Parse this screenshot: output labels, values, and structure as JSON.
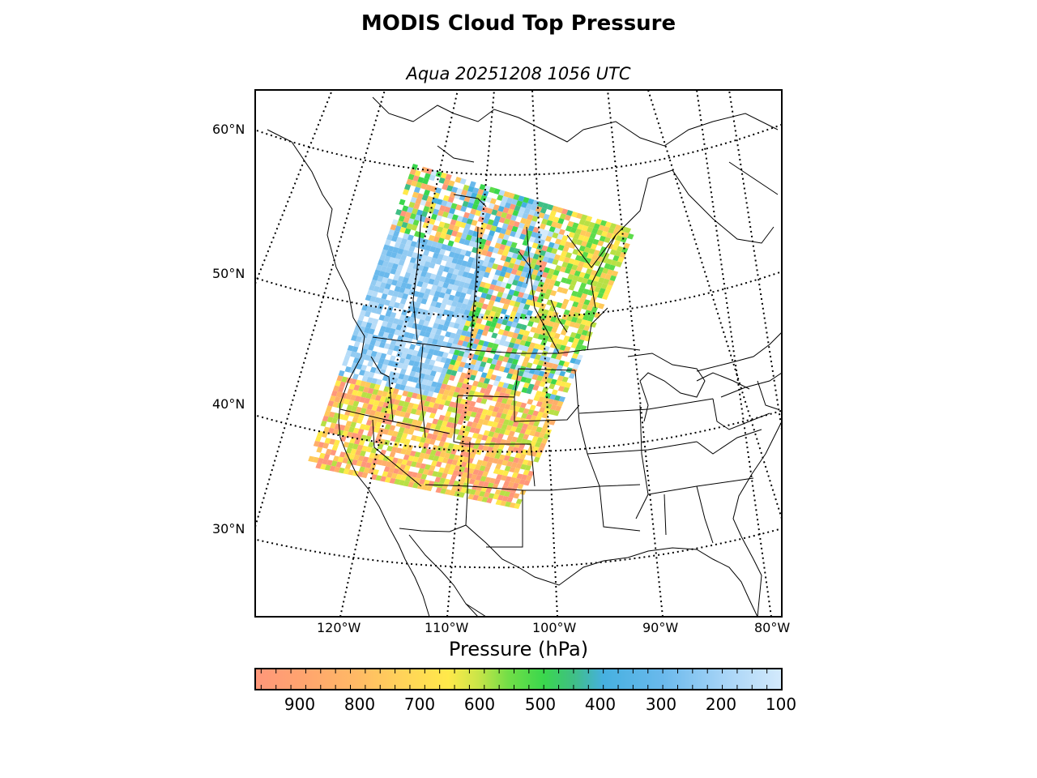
{
  "title": "MODIS Cloud Top Pressure",
  "subtitle": "Aqua 20251208 1056 UTC",
  "map": {
    "projection": "conic",
    "lat_labels": [
      "60°N",
      "50°N",
      "40°N",
      "30°N"
    ],
    "lon_labels": [
      "120°W",
      "110°W",
      "100°W",
      "90°W",
      "80°W"
    ],
    "graticule_style": "dotted",
    "swath_colors": [
      "#ff977a",
      "#ffae6a",
      "#ffc95a",
      "#ffe94a",
      "#b8e045",
      "#5cdc4a",
      "#3ad74d",
      "#3fbf85",
      "#46b0e0",
      "#6ab9ec",
      "#92cbf2",
      "#b6dcf8",
      "#d4eafc"
    ]
  },
  "colorbar": {
    "label": "Pressure (hPa)",
    "ticks": [
      "900",
      "800",
      "700",
      "600",
      "500",
      "400",
      "300",
      "200",
      "100"
    ],
    "range": [
      985,
      100
    ],
    "stops": [
      {
        "value": 985,
        "color": "#ff977a"
      },
      {
        "value": 900,
        "color": "#ffa56e"
      },
      {
        "value": 820,
        "color": "#ffb866"
      },
      {
        "value": 740,
        "color": "#ffd25a"
      },
      {
        "value": 660,
        "color": "#ffe94a"
      },
      {
        "value": 610,
        "color": "#c9e548"
      },
      {
        "value": 560,
        "color": "#72de47"
      },
      {
        "value": 500,
        "color": "#3ad74d"
      },
      {
        "value": 450,
        "color": "#3fbf85"
      },
      {
        "value": 400,
        "color": "#46b0e0"
      },
      {
        "value": 300,
        "color": "#6ab9ec"
      },
      {
        "value": 200,
        "color": "#a5d3f6"
      },
      {
        "value": 100,
        "color": "#d4eafc"
      }
    ]
  }
}
